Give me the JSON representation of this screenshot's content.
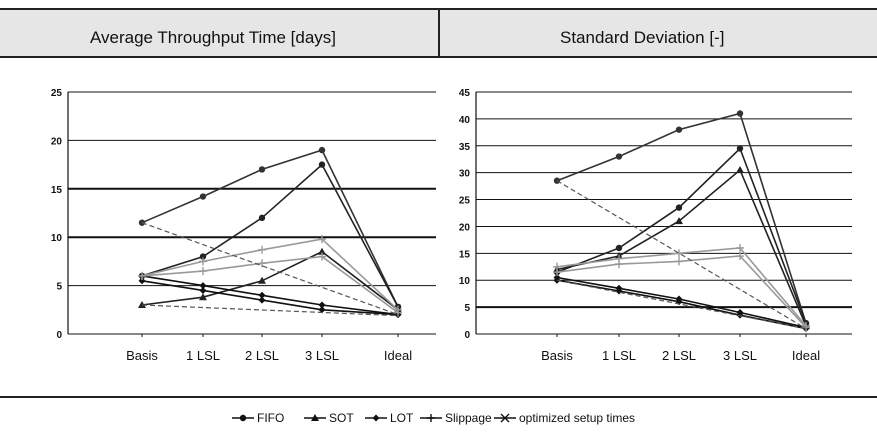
{
  "chart_data": [
    {
      "type": "line",
      "title": "Average Throughput Time [days]",
      "categories": [
        "Basis",
        "1 LSL",
        "2 LSL",
        "3 LSL",
        "Ideal"
      ],
      "ylim": [
        0,
        25
      ],
      "yticks": [
        "0",
        "5",
        "10",
        "15",
        "20",
        "25"
      ],
      "grid": true,
      "series": [
        {
          "name": "FIFO",
          "values": [
            11.5,
            14.2,
            17.0,
            19.0,
            2.8
          ],
          "color": "#333333",
          "marker": "circle",
          "dash": false
        },
        {
          "name": "FIFO",
          "values": [
            6.0,
            8.0,
            12.0,
            17.5,
            2.8
          ],
          "color": "#222222",
          "marker": "circle",
          "dash": false
        },
        {
          "name": "SOT",
          "values": [
            3.0,
            3.8,
            5.5,
            8.5,
            2.5
          ],
          "color": "#222222",
          "marker": "triangle",
          "dash": false
        },
        {
          "name": "LOT",
          "values": [
            6.0,
            5.0,
            4.0,
            3.0,
            2.0
          ],
          "color": "#111111",
          "marker": "diamond",
          "dash": false
        },
        {
          "name": "LOT",
          "values": [
            5.5,
            4.5,
            3.5,
            2.5,
            2.0
          ],
          "color": "#111111",
          "marker": "diamond",
          "dash": false
        },
        {
          "name": "Slippage",
          "values": [
            6.0,
            7.5,
            8.7,
            9.8,
            2.5
          ],
          "color": "#999999",
          "marker": "plus",
          "dash": false
        },
        {
          "name": "Slippage",
          "values": [
            6.0,
            6.5,
            7.3,
            8.0,
            2.2
          ],
          "color": "#999999",
          "marker": "plus",
          "dash": false
        },
        {
          "name": "optimized setup times",
          "values": [
            11.5,
            null,
            null,
            null,
            2.0
          ],
          "color": "#555555",
          "marker": "none",
          "dash": true
        },
        {
          "name": "optimized setup times",
          "values": [
            3.0,
            null,
            null,
            null,
            1.9
          ],
          "color": "#555555",
          "marker": "none",
          "dash": true
        }
      ]
    },
    {
      "type": "line",
      "title": "Standard Deviation [-]",
      "categories": [
        "Basis",
        "1 LSL",
        "2 LSL",
        "3 LSL",
        "Ideal"
      ],
      "ylim": [
        0,
        45
      ],
      "yticks": [
        "0",
        "5",
        "10",
        "15",
        "20",
        "25",
        "30",
        "35",
        "40",
        "45"
      ],
      "grid": true,
      "series": [
        {
          "name": "FIFO",
          "values": [
            28.5,
            33.0,
            38.0,
            41.0,
            2.0
          ],
          "color": "#333333",
          "marker": "circle",
          "dash": false
        },
        {
          "name": "FIFO",
          "values": [
            11.5,
            16.0,
            23.5,
            34.5,
            2.0
          ],
          "color": "#222222",
          "marker": "circle",
          "dash": false
        },
        {
          "name": "SOT",
          "values": [
            12.0,
            14.5,
            21.0,
            30.5,
            1.5
          ],
          "color": "#222222",
          "marker": "triangle",
          "dash": false
        },
        {
          "name": "LOT",
          "values": [
            10.5,
            8.5,
            6.5,
            4.0,
            1.2
          ],
          "color": "#111111",
          "marker": "diamond",
          "dash": false
        },
        {
          "name": "LOT",
          "values": [
            10.0,
            8.0,
            6.0,
            3.5,
            1.0
          ],
          "color": "#111111",
          "marker": "diamond",
          "dash": false
        },
        {
          "name": "Slippage",
          "values": [
            12.5,
            14.0,
            15.0,
            16.0,
            1.5
          ],
          "color": "#999999",
          "marker": "plus",
          "dash": false
        },
        {
          "name": "Slippage",
          "values": [
            11.5,
            13.0,
            13.5,
            14.5,
            1.2
          ],
          "color": "#999999",
          "marker": "plus",
          "dash": false
        },
        {
          "name": "optimized setup times",
          "values": [
            28.5,
            null,
            null,
            null,
            1.0
          ],
          "color": "#555555",
          "marker": "none",
          "dash": true
        },
        {
          "name": "optimized setup times",
          "values": [
            10.0,
            null,
            null,
            null,
            1.0
          ],
          "color": "#555555",
          "marker": "none",
          "dash": true
        }
      ]
    }
  ],
  "legend": {
    "placement": "bottom",
    "entries": [
      {
        "label": "FIFO",
        "marker": "circle"
      },
      {
        "label": "SOT",
        "marker": "triangle"
      },
      {
        "label": "LOT",
        "marker": "diamond"
      },
      {
        "label": "Slippage",
        "marker": "plus"
      },
      {
        "label": "optimized setup times",
        "marker": "cross"
      }
    ]
  }
}
